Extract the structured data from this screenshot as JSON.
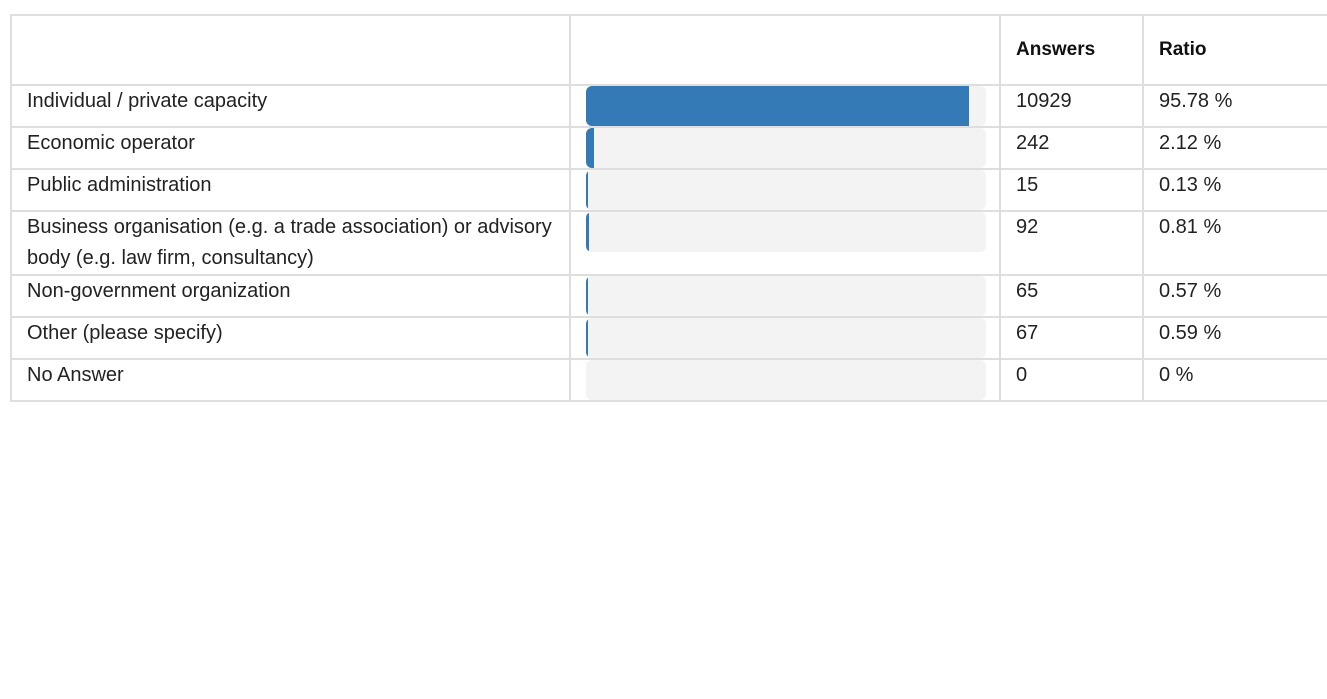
{
  "header_fragment": "",
  "table": {
    "columns": [
      "",
      "",
      "Answers",
      "Ratio"
    ],
    "accent_color": "#337ab7",
    "track_color": "#f3f3f3",
    "rows": [
      {
        "label": "Individual / private capacity",
        "answers": "10929",
        "ratio": "95.78 %",
        "fraction": 0.9578
      },
      {
        "label": "Economic operator",
        "answers": "242",
        "ratio": "2.12 %",
        "fraction": 0.0212
      },
      {
        "label": "Public administration",
        "answers": "15",
        "ratio": "0.13 %",
        "fraction": 0.0013
      },
      {
        "label": "Business organisation (e.g. a trade association) or advisory body (e.g. law firm, consultancy)",
        "answers": "92",
        "ratio": "0.81 %",
        "fraction": 0.0081
      },
      {
        "label": "Non-government organization",
        "answers": "65",
        "ratio": "0.57 %",
        "fraction": 0.0057
      },
      {
        "label": "Other (please specify)",
        "answers": "67",
        "ratio": "0.59 %",
        "fraction": 0.0059
      },
      {
        "label": "No Answer",
        "answers": "0",
        "ratio": "0 %",
        "fraction": 0
      }
    ]
  }
}
